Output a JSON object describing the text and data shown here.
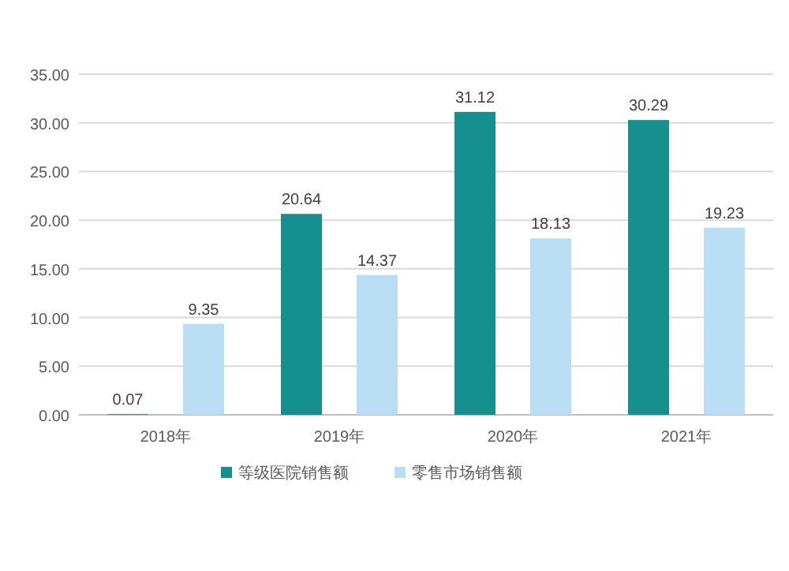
{
  "chart_data": {
    "type": "bar",
    "categories": [
      "2018年",
      "2019年",
      "2020年",
      "2021年"
    ],
    "series": [
      {
        "name": "等级医院销售额",
        "color": "#16908f",
        "values": [
          0.07,
          20.64,
          31.12,
          30.29
        ]
      },
      {
        "name": "零售市场销售额",
        "color": "#b9def4",
        "values": [
          9.35,
          14.37,
          18.13,
          19.23
        ]
      }
    ],
    "ylim": [
      0,
      35
    ],
    "yticks": [
      {
        "value": 0,
        "label": "0.00"
      },
      {
        "value": 5,
        "label": "5.00"
      },
      {
        "value": 10,
        "label": "10.00"
      },
      {
        "value": 15,
        "label": "15.00"
      },
      {
        "value": 20,
        "label": "20.00"
      },
      {
        "value": 25,
        "label": "25.00"
      },
      {
        "value": 30,
        "label": "30.00"
      },
      {
        "value": 35,
        "label": "35.00"
      }
    ],
    "grid": "y",
    "legend": "bottom",
    "data_labels": true
  }
}
